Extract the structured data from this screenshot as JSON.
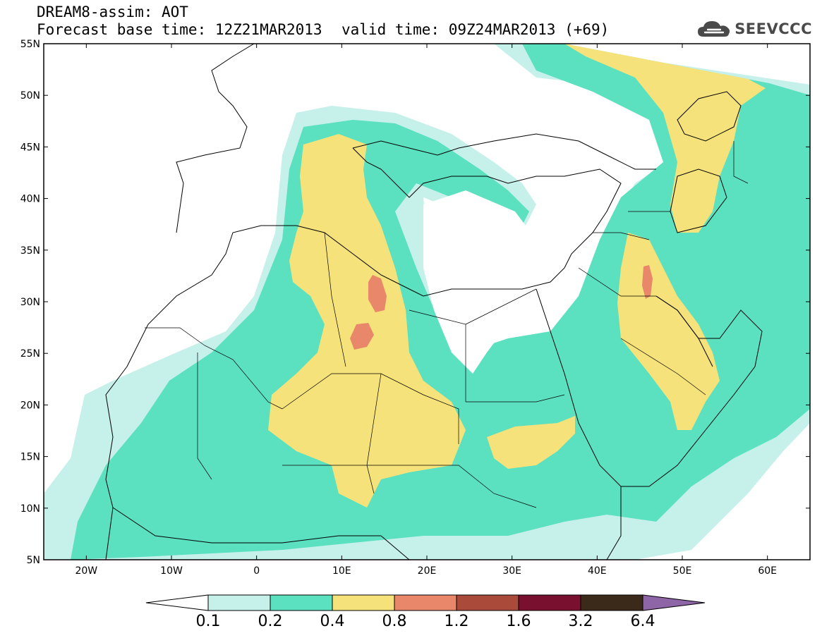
{
  "header": {
    "model_line": "DREAM8-assim: AOT",
    "base_time": "Forecast base time: 12Z21MAR2013",
    "valid_time": "valid time: 09Z24MAR2013 (+69)"
  },
  "logo": {
    "text": "SEEVCCC",
    "icon": "cloud-logo-icon"
  },
  "map": {
    "lat_labels": [
      "55N",
      "50N",
      "45N",
      "40N",
      "35N",
      "30N",
      "25N",
      "20N",
      "15N",
      "10N",
      "5N"
    ],
    "lon_labels": [
      "20W",
      "10W",
      "0",
      "10E",
      "20E",
      "30E",
      "40E",
      "50E",
      "60E"
    ],
    "lon_range": [
      -25,
      65
    ],
    "lat_range": [
      5,
      55
    ]
  },
  "colorbar": {
    "labels": [
      "0.1",
      "0.2",
      "0.4",
      "0.8",
      "1.2",
      "1.6",
      "3.2",
      "6.4"
    ],
    "colors": [
      "#c6f0ea",
      "#5be0c0",
      "#f6e27a",
      "#e9876a",
      "#a94a3b",
      "#7a1030",
      "#3b2a19",
      "#8e66a8"
    ],
    "under_color": "#ffffff"
  }
}
